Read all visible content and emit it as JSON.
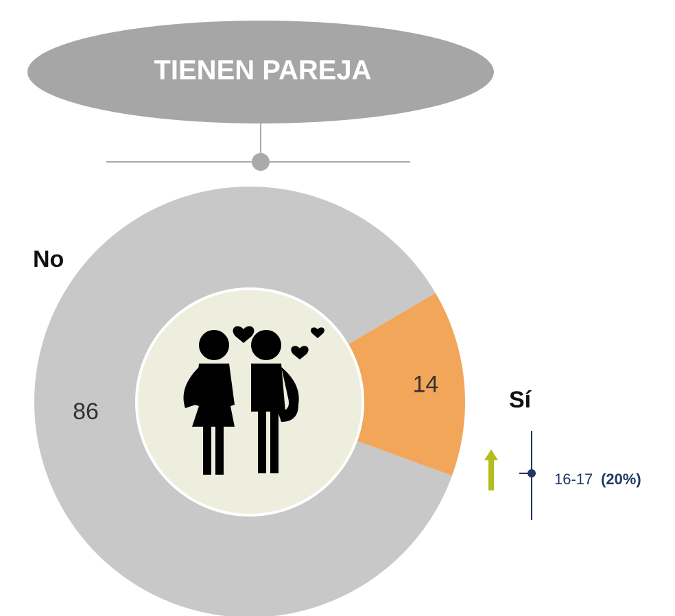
{
  "chart_data": {
    "type": "donut",
    "title": "TIENEN PAREJA",
    "categories": [
      "Sí",
      "No"
    ],
    "values": [
      14,
      86
    ],
    "colors": [
      "#f2a65a",
      "#c8c8c8"
    ],
    "annotation": {
      "label": "16-17",
      "value": 20,
      "value_label": "(20%)"
    }
  }
}
